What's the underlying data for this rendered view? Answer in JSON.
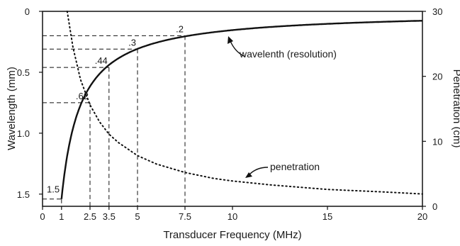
{
  "chart_data": {
    "type": "line",
    "title": "",
    "xlabel": "Transducer Frequency (MHz)",
    "ylabel_left": "Wavelength (mm)",
    "ylabel_right": "Penetration (cm)",
    "xlim": [
      0,
      20
    ],
    "ylim_left": [
      0,
      1.6
    ],
    "ylim_left_inverted": true,
    "ylim_right": [
      0,
      30
    ],
    "x_ticks": [
      {
        "value": 0,
        "label": "0"
      },
      {
        "value": 1,
        "label": "1"
      },
      {
        "value": 2.5,
        "label": "2.5"
      },
      {
        "value": 3.5,
        "label": "3.5"
      },
      {
        "value": 5,
        "label": "5"
      },
      {
        "value": 7.5,
        "label": "7.5"
      },
      {
        "value": 10,
        "label": "10"
      },
      {
        "value": 15,
        "label": "15"
      },
      {
        "value": 20,
        "label": "20"
      }
    ],
    "y_left_ticks": [
      {
        "value": 0,
        "label": "0"
      },
      {
        "value": 0.5,
        "label": "0.5"
      },
      {
        "value": 1.0,
        "label": "1.0"
      },
      {
        "value": 1.5,
        "label": "1.5"
      }
    ],
    "y_right_ticks": [
      {
        "value": 0,
        "label": "0"
      },
      {
        "value": 10,
        "label": "10"
      },
      {
        "value": 20,
        "label": "20"
      },
      {
        "value": 30,
        "label": "30"
      }
    ],
    "series": [
      {
        "name": "wavelenth (resolution)",
        "axis": "left",
        "style": "solid",
        "formula": "wavelength_mm = 1.54 / frequency_MHz",
        "x": [
          1,
          1.25,
          1.5,
          1.75,
          2,
          2.5,
          3,
          3.5,
          4,
          5,
          6,
          7.5,
          9,
          10,
          12,
          15,
          18,
          20
        ],
        "y": [
          1.54,
          1.232,
          1.027,
          0.88,
          0.77,
          0.616,
          0.513,
          0.44,
          0.385,
          0.308,
          0.257,
          0.205,
          0.171,
          0.154,
          0.128,
          0.103,
          0.086,
          0.077
        ]
      },
      {
        "name": "penetration",
        "axis": "right",
        "style": "dotted",
        "x": [
          1.3,
          1.6,
          2,
          2.5,
          3,
          3.5,
          4,
          5,
          6,
          7.5,
          9,
          10,
          12,
          15,
          18,
          20
        ],
        "y": [
          30,
          24.5,
          19.5,
          15.6,
          13.0,
          11.1,
          9.8,
          7.8,
          6.5,
          5.2,
          4.3,
          3.9,
          3.3,
          2.6,
          2.2,
          1.9
        ]
      }
    ],
    "reference_points": [
      {
        "x": 1,
        "y": 1.54,
        "label": "1.5"
      },
      {
        "x": 2.5,
        "y": 0.75,
        "label": ".62"
      },
      {
        "x": 3.5,
        "y": 0.46,
        "label": ".44"
      },
      {
        "x": 5,
        "y": 0.31,
        "label": ".3"
      },
      {
        "x": 7.5,
        "y": 0.2,
        "label": ".2"
      }
    ],
    "annotations": [
      {
        "text": "wavelenth (resolution)",
        "target": "wavelength"
      },
      {
        "text": "penetration",
        "target": "penetration"
      }
    ],
    "grid": false,
    "legend": "none",
    "colors": {
      "line": "#111111",
      "text": "#1a1a1a"
    }
  }
}
